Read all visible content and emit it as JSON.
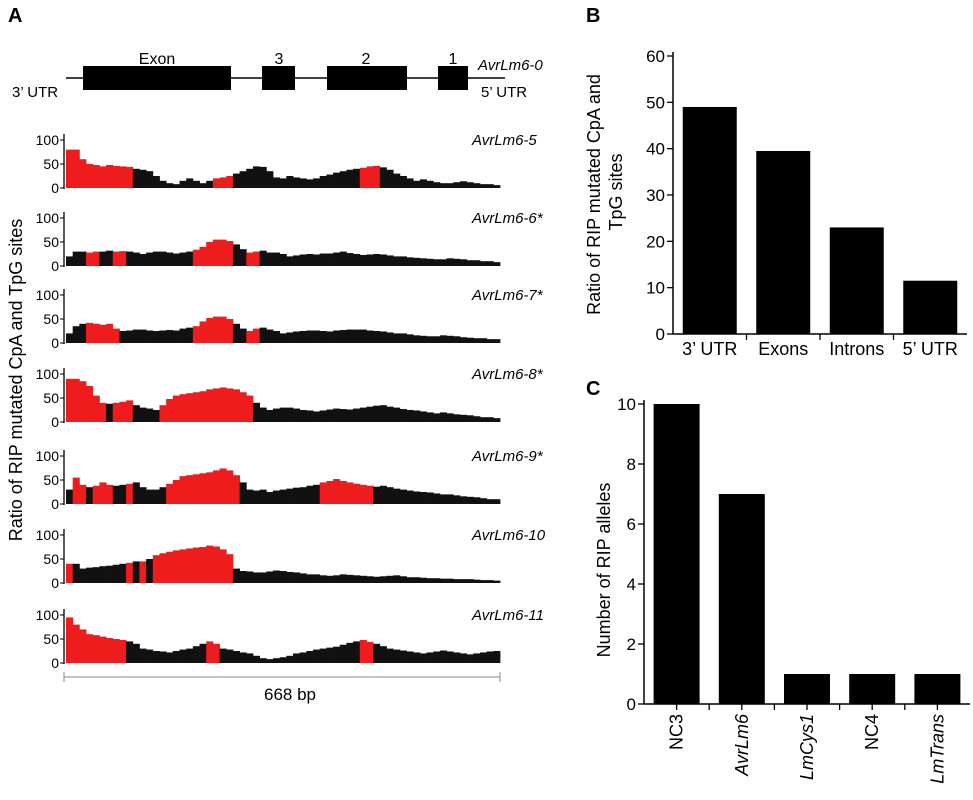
{
  "panels": {
    "A": "A",
    "B": "B",
    "C": "C"
  },
  "chart_data": [
    {
      "type": "area",
      "panel": "A",
      "ylabel": "Ratio of RIP mutated CpA and TpG sites",
      "xlabel": "668 bp",
      "yticks": [
        "100",
        "50",
        "0"
      ],
      "ylim": [
        0,
        100
      ],
      "gene_model": {
        "name": "AvrLm6-0",
        "left_label": "3’ UTR",
        "right_label": "5’ UTR",
        "exon_label": "Exon",
        "intron_labels": [
          "3",
          "2",
          "1"
        ]
      },
      "series": [
        {
          "name": "AvrLm6-5",
          "values": [
            80,
            80,
            60,
            50,
            48,
            45,
            48,
            46,
            45,
            44,
            40,
            38,
            35,
            25,
            15,
            10,
            8,
            15,
            20,
            15,
            10,
            15,
            20,
            22,
            25,
            30,
            35,
            40,
            45,
            44,
            35,
            22,
            20,
            25,
            22,
            20,
            18,
            20,
            25,
            28,
            32,
            35,
            38,
            40,
            42,
            45,
            46,
            43,
            38,
            30,
            25,
            20,
            15,
            18,
            15,
            12,
            10,
            10,
            12,
            14,
            12,
            10,
            8,
            8,
            6
          ],
          "red": [
            [
              0,
              9
            ],
            [
              22,
              24
            ],
            [
              44,
              46
            ]
          ]
        },
        {
          "name": "AvrLm6-6*",
          "values": [
            20,
            30,
            30,
            28,
            30,
            30,
            32,
            30,
            31,
            30,
            28,
            25,
            28,
            30,
            30,
            28,
            26,
            28,
            30,
            34,
            40,
            50,
            55,
            55,
            52,
            45,
            35,
            28,
            30,
            32,
            28,
            28,
            25,
            20,
            22,
            24,
            25,
            24,
            26,
            26,
            28,
            30,
            27,
            25,
            23,
            24,
            25,
            24,
            22,
            20,
            20,
            18,
            17,
            16,
            15,
            14,
            14,
            16,
            15,
            14,
            12,
            12,
            10,
            10,
            8
          ],
          "red": [
            [
              3,
              4
            ],
            [
              7,
              8
            ],
            [
              19,
              24
            ],
            [
              27,
              28
            ]
          ]
        },
        {
          "name": "AvrLm6-7*",
          "values": [
            20,
            35,
            40,
            42,
            40,
            38,
            40,
            30,
            25,
            26,
            28,
            28,
            26,
            25,
            26,
            27,
            26,
            30,
            32,
            35,
            45,
            52,
            55,
            55,
            50,
            40,
            30,
            25,
            30,
            32,
            28,
            25,
            20,
            22,
            24,
            25,
            26,
            26,
            25,
            24,
            26,
            27,
            28,
            28,
            28,
            26,
            25,
            24,
            22,
            20,
            20,
            18,
            16,
            15,
            14,
            14,
            16,
            15,
            14,
            12,
            11,
            10,
            10,
            8,
            8
          ],
          "red": [
            [
              3,
              7
            ],
            [
              19,
              24
            ],
            [
              27,
              28
            ]
          ]
        },
        {
          "name": "AvrLm6-8*",
          "values": [
            90,
            90,
            85,
            75,
            55,
            40,
            38,
            40,
            42,
            45,
            35,
            30,
            28,
            25,
            35,
            48,
            55,
            58,
            60,
            62,
            64,
            68,
            70,
            72,
            70,
            68,
            62,
            55,
            40,
            30,
            25,
            28,
            30,
            30,
            28,
            25,
            24,
            22,
            24,
            26,
            28,
            27,
            26,
            28,
            30,
            32,
            34,
            35,
            32,
            30,
            27,
            25,
            24,
            22,
            20,
            18,
            20,
            18,
            16,
            15,
            14,
            12,
            10,
            10,
            8
          ],
          "red": [
            [
              0,
              5
            ],
            [
              7,
              9
            ],
            [
              14,
              27
            ]
          ]
        },
        {
          "name": "AvrLm6-9*",
          "values": [
            30,
            55,
            40,
            35,
            38,
            45,
            40,
            38,
            40,
            42,
            45,
            35,
            30,
            30,
            35,
            42,
            50,
            58,
            60,
            62,
            64,
            66,
            70,
            74,
            70,
            60,
            45,
            30,
            28,
            30,
            25,
            28,
            30,
            32,
            34,
            35,
            38,
            40,
            45,
            48,
            52,
            48,
            45,
            42,
            40,
            38,
            36,
            38,
            35,
            32,
            30,
            28,
            26,
            25,
            24,
            22,
            20,
            20,
            18,
            16,
            15,
            14,
            12,
            10,
            10
          ],
          "red": [
            [
              1,
              2
            ],
            [
              4,
              6
            ],
            [
              9,
              9
            ],
            [
              15,
              25
            ],
            [
              38,
              45
            ]
          ]
        },
        {
          "name": "AvrLm6-10",
          "values": [
            40,
            40,
            30,
            32,
            33,
            35,
            36,
            38,
            40,
            42,
            45,
            45,
            50,
            58,
            62,
            65,
            68,
            70,
            72,
            74,
            75,
            78,
            76,
            70,
            60,
            30,
            25,
            24,
            22,
            22,
            24,
            26,
            25,
            23,
            22,
            20,
            18,
            18,
            16,
            15,
            16,
            18,
            17,
            16,
            15,
            14,
            13,
            14,
            15,
            16,
            14,
            12,
            12,
            11,
            10,
            10,
            9,
            9,
            8,
            8,
            8,
            7,
            6,
            6,
            5
          ],
          "red": [
            [
              0,
              0
            ],
            [
              9,
              9
            ],
            [
              11,
              11
            ],
            [
              13,
              24
            ]
          ]
        },
        {
          "name": "AvrLm6-11",
          "values": [
            95,
            80,
            70,
            60,
            58,
            55,
            52,
            50,
            48,
            45,
            40,
            30,
            28,
            25,
            24,
            22,
            25,
            28,
            30,
            35,
            40,
            45,
            40,
            30,
            28,
            25,
            22,
            20,
            15,
            10,
            8,
            10,
            12,
            15,
            20,
            22,
            25,
            28,
            30,
            32,
            34,
            38,
            42,
            45,
            48,
            44,
            40,
            35,
            30,
            28,
            26,
            24,
            22,
            20,
            22,
            24,
            26,
            24,
            22,
            20,
            18,
            20,
            22,
            24,
            25
          ],
          "red": [
            [
              0,
              8
            ],
            [
              21,
              22
            ],
            [
              44,
              45
            ]
          ]
        }
      ]
    },
    {
      "type": "bar",
      "panel": "B",
      "ylabel": "Ratio of RIP mutated CpA and TpG sites",
      "categories": [
        "3’ UTR",
        "Exons",
        "Introns",
        "5’ UTR"
      ],
      "values": [
        49,
        39.5,
        23,
        11.5
      ],
      "ylim": [
        0,
        60
      ],
      "yticks": [
        0,
        10,
        20,
        30,
        40,
        50,
        60
      ]
    },
    {
      "type": "bar",
      "panel": "C",
      "ylabel": "Number of RIP alleles",
      "categories": [
        "NC3",
        "AvrLm6",
        "LmCys1",
        "NC4",
        "LmTrans"
      ],
      "italic": [
        false,
        true,
        true,
        false,
        true
      ],
      "values": [
        10,
        7,
        1,
        1,
        1
      ],
      "ylim": [
        0,
        10
      ],
      "yticks": [
        0,
        2,
        4,
        6,
        8,
        10
      ]
    }
  ]
}
